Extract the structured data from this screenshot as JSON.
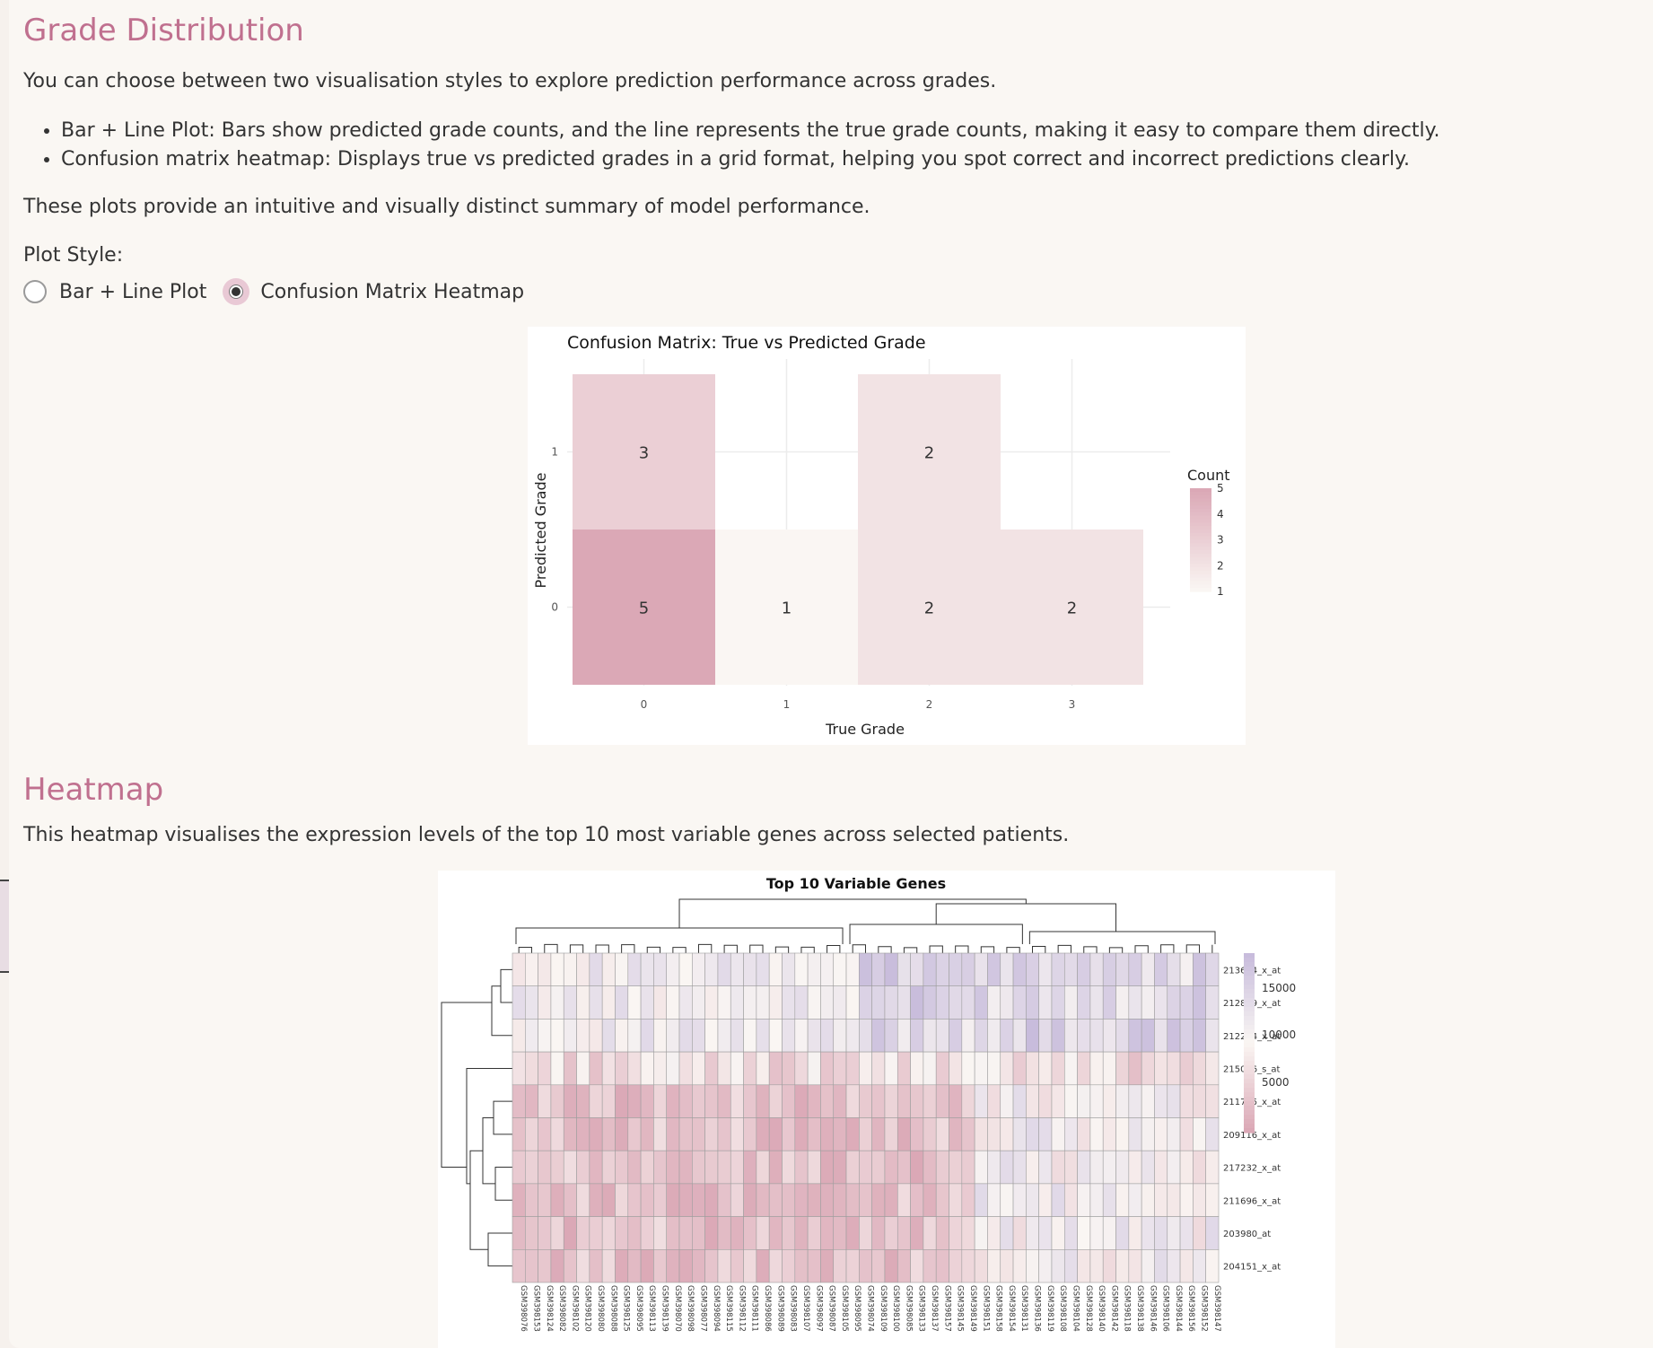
{
  "grade_section": {
    "title": "Grade Distribution",
    "intro": "You can choose between two visualisation styles to explore prediction performance across grades.",
    "bullets": [
      "Bar + Line Plot: Bars show predicted grade counts, and the line represents the true grade counts, making it easy to compare them directly.",
      "Confusion matrix heatmap: Displays true vs predicted grades in a grid format, helping you spot correct and incorrect predictions clearly."
    ],
    "summary": "These plots provide an intuitive and visually distinct summary of model performance.",
    "plot_style_label": "Plot Style:",
    "options": [
      {
        "label": "Bar + Line Plot",
        "selected": false
      },
      {
        "label": "Confusion Matrix Heatmap",
        "selected": true
      }
    ]
  },
  "heatmap_section": {
    "title": "Heatmap",
    "description": "This heatmap visualises the expression levels of the top 10 most variable genes across selected patients."
  },
  "chart_data": [
    {
      "type": "heatmap",
      "title": "Confusion Matrix: True vs Predicted Grade",
      "xlabel": "True Grade",
      "ylabel": "Predicted Grade",
      "x_categories": [
        "0",
        "1",
        "2",
        "3"
      ],
      "y_categories": [
        "0",
        "1"
      ],
      "cells": [
        {
          "true": "0",
          "predicted": "1",
          "count": 3
        },
        {
          "true": "2",
          "predicted": "1",
          "count": 2
        },
        {
          "true": "0",
          "predicted": "0",
          "count": 5
        },
        {
          "true": "1",
          "predicted": "0",
          "count": 1
        },
        {
          "true": "2",
          "predicted": "0",
          "count": 2
        },
        {
          "true": "3",
          "predicted": "0",
          "count": 2
        }
      ],
      "legend_title": "Count",
      "legend_ticks": [
        "5",
        "4",
        "3",
        "2",
        "1"
      ],
      "colors": {
        "low": "#faf6f3",
        "high": "#dba8b6"
      }
    },
    {
      "type": "heatmap",
      "title": "Top 10 Variable Genes",
      "genes": [
        "213614_x_at",
        "212869_x_at",
        "212284_x_at",
        "215076_s_at",
        "211745_x_at",
        "209116_x_at",
        "217232_x_at",
        "211696_x_at",
        "203980_at",
        "204151_x_at"
      ],
      "samples": [
        "GSM398076",
        "GSM398153",
        "GSM398124",
        "GSM398082",
        "GSM398102",
        "GSM398120",
        "GSM398080",
        "GSM398088",
        "GSM398125",
        "GSM398095",
        "GSM398113",
        "GSM398139",
        "GSM398070",
        "GSM398098",
        "GSM398077",
        "GSM398094",
        "GSM398115",
        "GSM398112",
        "GSM398111",
        "GSM398086",
        "GSM398089",
        "GSM398083",
        "GSM398107",
        "GSM398097",
        "GSM398087",
        "GSM398105",
        "GSM398095",
        "GSM398074",
        "GSM398109",
        "GSM398100",
        "GSM398085",
        "GSM398133",
        "GSM398137",
        "GSM398157",
        "GSM398145",
        "GSM398149",
        "GSM398151",
        "GSM398158",
        "GSM398154",
        "GSM398131",
        "GSM398136",
        "GSM398119",
        "GSM398108",
        "GSM398104",
        "GSM398128",
        "GSM398140",
        "GSM398142",
        "GSM398118",
        "GSM398138",
        "GSM398146",
        "GSM398106",
        "GSM398144",
        "GSM398156",
        "GSM398152",
        "GSM398147"
      ],
      "legend_ticks": [
        "15000",
        "10000",
        "5000"
      ],
      "colors": {
        "low": "#dba8b6",
        "mid": "#faf6f3",
        "high": "#c8bcdc"
      }
    }
  ]
}
